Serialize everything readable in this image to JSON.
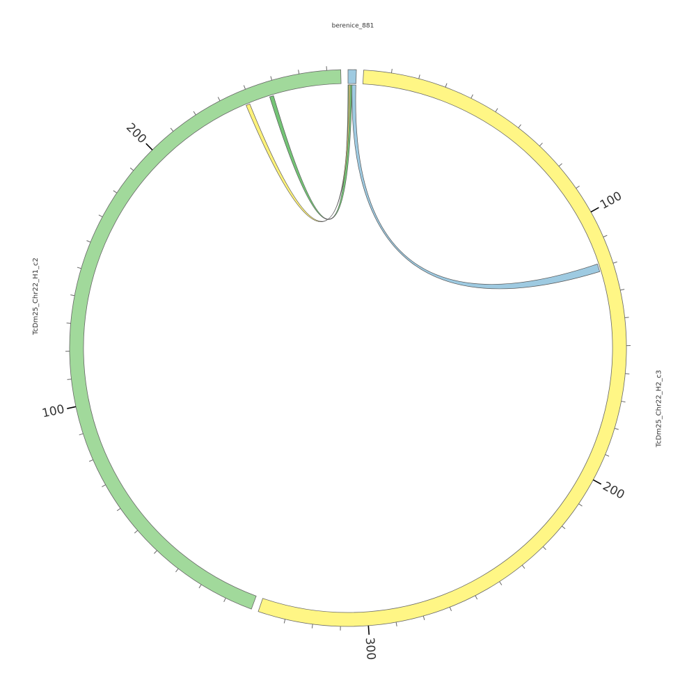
{
  "chart_data": {
    "type": "circos",
    "title": "berenice_881",
    "minor_tick_spacing": 10,
    "segments": [
      {
        "name": null,
        "length": 3,
        "color": "#9ecae1",
        "ticks": []
      },
      {
        "name": "TcDm25_Chr22_H2_c3",
        "length": 340,
        "color": "#fff685",
        "ticks": [
          100,
          200,
          300
        ]
      },
      {
        "name": "TcDm25_Chr22_H1_c2",
        "length": 275,
        "color": "#a1d99b",
        "ticks": [
          100,
          200
        ]
      }
    ],
    "links": [
      {
        "color": "#9ecae1",
        "source": {
          "segment": 0,
          "start": 1.5,
          "end": 3
        },
        "target": {
          "segment": 1,
          "start": 118.5,
          "end": 121.5
        }
      },
      {
        "color": "#74c476",
        "source": {
          "segment": 0,
          "start": 0,
          "end": 1.5
        },
        "target": {
          "segment": 2,
          "start": 247.5,
          "end": 249
        }
      },
      {
        "color": "#fff27a",
        "source": {
          "segment": 0,
          "start": 0.3,
          "end": 0.8
        },
        "target": {
          "segment": 2,
          "start": 238,
          "end": 239.5
        }
      }
    ]
  }
}
